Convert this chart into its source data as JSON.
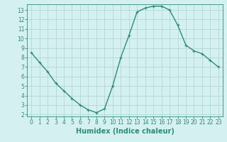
{
  "x": [
    0,
    1,
    2,
    3,
    4,
    5,
    6,
    7,
    8,
    9,
    10,
    11,
    12,
    13,
    14,
    15,
    16,
    17,
    18,
    19,
    20,
    21,
    22,
    23
  ],
  "y": [
    8.5,
    7.5,
    6.5,
    5.3,
    4.5,
    3.7,
    3.0,
    2.5,
    2.2,
    2.6,
    5.0,
    8.0,
    10.3,
    12.8,
    13.2,
    13.4,
    13.4,
    13.0,
    11.4,
    9.3,
    8.7,
    8.4,
    7.7,
    7.0
  ],
  "line_color": "#2e8b7a",
  "marker": "+",
  "marker_size": 3,
  "background_color": "#d4f0f0",
  "grid_color": "#b0d8d8",
  "xlabel": "Humidex (Indice chaleur)",
  "xlim": [
    -0.5,
    23.5
  ],
  "ylim": [
    1.8,
    13.6
  ],
  "yticks": [
    2,
    3,
    4,
    5,
    6,
    7,
    8,
    9,
    10,
    11,
    12,
    13
  ],
  "xticks": [
    0,
    1,
    2,
    3,
    4,
    5,
    6,
    7,
    8,
    9,
    10,
    11,
    12,
    13,
    14,
    15,
    16,
    17,
    18,
    19,
    20,
    21,
    22,
    23
  ],
  "tick_fontsize": 5.5,
  "xlabel_fontsize": 7,
  "line_width": 1.0,
  "markeredgewidth": 0.8
}
